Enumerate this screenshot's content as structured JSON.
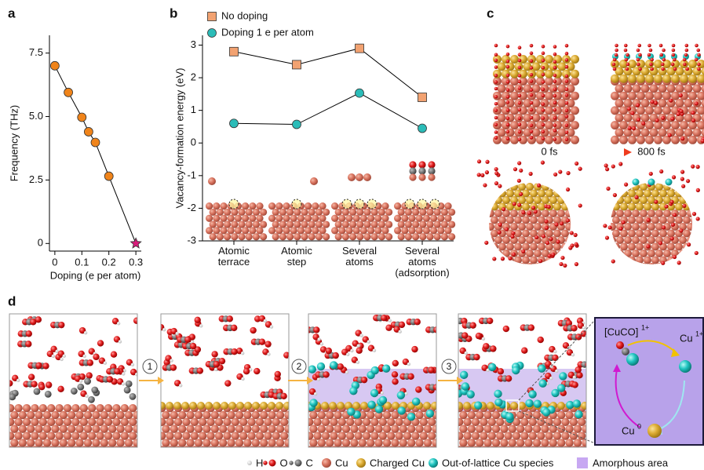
{
  "panel_labels": [
    "a",
    "b",
    "c",
    "d"
  ],
  "chart_data": [
    {
      "type": "line",
      "x_label": "Doping (e per atom)",
      "y_label": "Frequency (THz)",
      "x": [
        0,
        0.05,
        0.1,
        0.125,
        0.15,
        0.2,
        0.3
      ],
      "values": [
        7.0,
        5.95,
        4.97,
        4.4,
        3.98,
        2.65,
        0
      ],
      "color": "#f0841a",
      "line_color": "#000000",
      "markers": [
        "circle",
        "circle",
        "circle",
        "circle",
        "circle",
        "circle",
        "star"
      ],
      "marker_colors": [
        "#f0841a",
        "#f0841a",
        "#f0841a",
        "#f0841a",
        "#f0841a",
        "#f0841a",
        "#d81b7a"
      ],
      "xlim": [
        -0.02,
        0.32
      ],
      "xticks": [
        0,
        0.1,
        0.2,
        0.3
      ],
      "ylim": [
        -0.3,
        8.2
      ],
      "yticks": [
        0,
        2.5,
        {
          "value": 5,
          "label": "5.0"
        },
        7.5
      ]
    },
    {
      "type": "line",
      "y_label": "Vacancy-formation energy (eV)",
      "categories": [
        "Atomic terrace",
        "Atomic step",
        "Several atoms",
        "Several atoms (adsorption)"
      ],
      "series": [
        {
          "name": "No doping",
          "color": "#f2a271",
          "marker": "square",
          "values": [
            2.8,
            2.4,
            2.9,
            1.4
          ]
        },
        {
          "name": "Doping 1 e per atom",
          "color": "#2bbcb8",
          "marker": "circle",
          "values": [
            0.6,
            0.57,
            1.53,
            0.45
          ]
        }
      ],
      "line_color": "#000000",
      "ylim": [
        -3,
        3.3
      ],
      "yticks": [
        -3,
        -2,
        -1,
        0,
        1,
        2,
        3
      ],
      "legend": "upper left"
    }
  ],
  "panel_c": {
    "start": "0 fs",
    "end": "800 fs"
  },
  "panel_d": {
    "steps": [
      "1",
      "2",
      "3"
    ],
    "complex": "[CuCO]",
    "complex_charge": "1+",
    "cu_ion": "Cu",
    "cu_ion_charge": "1+",
    "cu_metal": "Cu",
    "cu_metal_charge": "0",
    "legend": [
      "H",
      "O",
      "C",
      "Cu",
      "Charged Cu",
      "Out-of-lattice Cu species",
      "Amorphous area"
    ]
  }
}
